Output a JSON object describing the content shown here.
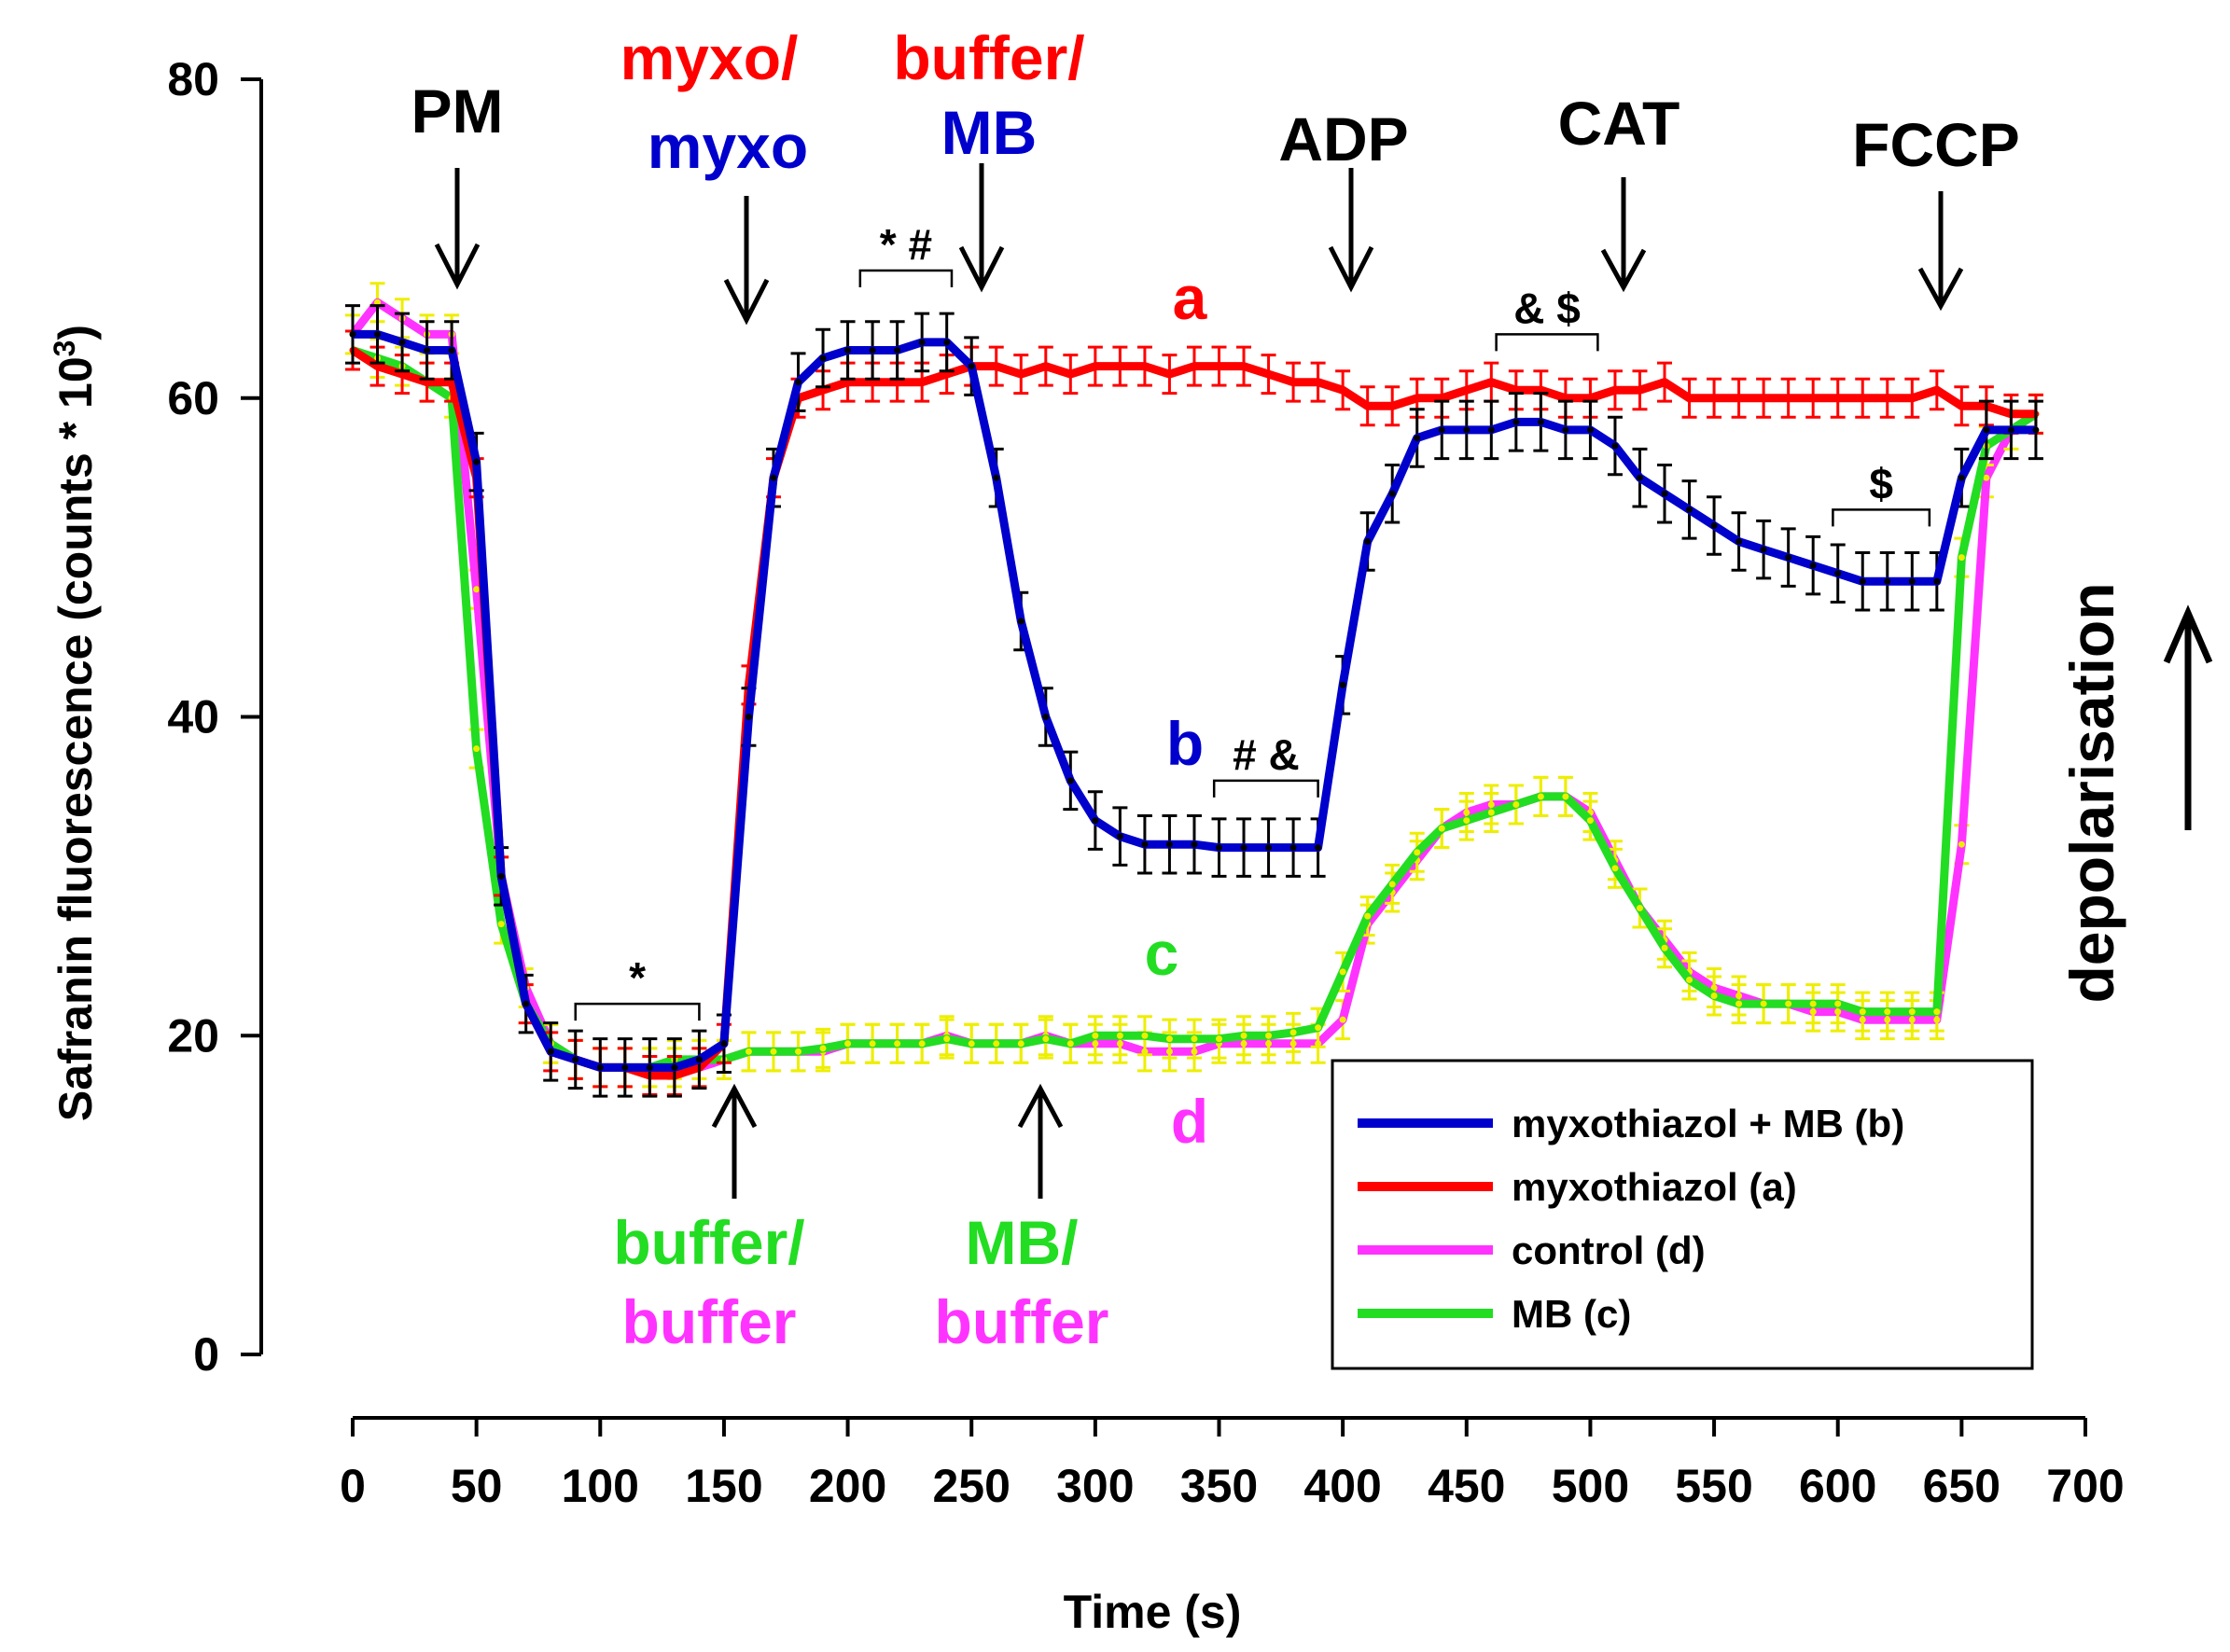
{
  "chart_data": {
    "type": "line",
    "xlabel": "Time (s)",
    "ylabel": "Safranin fluorescence (counts * 10",
    "ylabel_sup": "3",
    "ylabel_close": ")",
    "xlim": [
      0,
      700
    ],
    "ylim": [
      0,
      80
    ],
    "x_ticks": [
      0,
      50,
      100,
      150,
      200,
      250,
      300,
      350,
      400,
      450,
      500,
      550,
      600,
      650,
      700
    ],
    "y_ticks": [
      0,
      20,
      40,
      60,
      80
    ],
    "legend_position": "bottom-right",
    "series": [
      {
        "name": "control (d)",
        "color": "#ff33ff",
        "x": [
          0,
          10,
          20,
          30,
          40,
          50,
          60,
          70,
          80,
          90,
          100,
          110,
          120,
          130,
          140,
          150,
          160,
          170,
          180,
          190,
          200,
          210,
          220,
          230,
          240,
          250,
          260,
          270,
          280,
          290,
          300,
          310,
          320,
          330,
          340,
          350,
          360,
          370,
          380,
          390,
          400,
          410,
          420,
          430,
          440,
          450,
          460,
          470,
          480,
          490,
          500,
          510,
          520,
          530,
          540,
          550,
          560,
          570,
          580,
          590,
          600,
          610,
          620,
          630,
          640,
          650,
          660,
          670,
          680
        ],
        "y": [
          64,
          66,
          65,
          64,
          64,
          48,
          30,
          23,
          19.5,
          18.5,
          18,
          18,
          18,
          18,
          18,
          18.5,
          19,
          19,
          19,
          19,
          19.5,
          19.5,
          19.5,
          19.5,
          20,
          19.5,
          19.5,
          19.5,
          20,
          19.5,
          19.5,
          19.5,
          19,
          19,
          19,
          19.5,
          19.5,
          19.5,
          19.5,
          19.5,
          21,
          27,
          29,
          31,
          33,
          34,
          34.5,
          34.5,
          35,
          35,
          34,
          31,
          28,
          26,
          24,
          23,
          22.5,
          22,
          22,
          21.5,
          21.5,
          21,
          21,
          21,
          21,
          32,
          55,
          58,
          59
        ]
      },
      {
        "name": "MB (c)",
        "color": "#22dd22",
        "x": [
          0,
          10,
          20,
          30,
          40,
          50,
          60,
          70,
          80,
          90,
          100,
          110,
          120,
          130,
          140,
          150,
          160,
          170,
          180,
          190,
          200,
          210,
          220,
          230,
          240,
          250,
          260,
          270,
          280,
          290,
          300,
          310,
          320,
          330,
          340,
          350,
          360,
          370,
          380,
          390,
          400,
          410,
          420,
          430,
          440,
          450,
          460,
          470,
          480,
          490,
          500,
          510,
          520,
          530,
          540,
          550,
          560,
          570,
          580,
          590,
          600,
          610,
          620,
          630,
          640,
          650,
          660,
          670,
          680
        ],
        "y": [
          63,
          62.5,
          62,
          61,
          60,
          38,
          27,
          22,
          19.5,
          18.5,
          18,
          18,
          18,
          18.5,
          18.5,
          18.5,
          19,
          19,
          19,
          19.2,
          19.5,
          19.5,
          19.5,
          19.5,
          19.8,
          19.5,
          19.5,
          19.5,
          19.8,
          19.5,
          20,
          20,
          20,
          19.8,
          19.8,
          19.8,
          20,
          20,
          20.2,
          20.5,
          24,
          27.5,
          29.5,
          31.5,
          33,
          33.5,
          34,
          34.5,
          35,
          35,
          33.5,
          30.5,
          28,
          25.5,
          23.5,
          22.5,
          22,
          22,
          22,
          22,
          22,
          21.5,
          21.5,
          21.5,
          21.5,
          50,
          57,
          58,
          59
        ]
      },
      {
        "name": "myxothiazol (a)",
        "color": "#ff0000",
        "x": [
          0,
          10,
          20,
          30,
          40,
          50,
          60,
          70,
          80,
          90,
          100,
          110,
          120,
          130,
          140,
          150,
          160,
          170,
          180,
          190,
          200,
          210,
          220,
          230,
          240,
          250,
          260,
          270,
          280,
          290,
          300,
          310,
          320,
          330,
          340,
          350,
          360,
          370,
          380,
          390,
          400,
          410,
          420,
          430,
          440,
          450,
          460,
          470,
          480,
          490,
          500,
          510,
          520,
          530,
          540,
          550,
          560,
          570,
          580,
          590,
          600,
          610,
          620,
          630,
          640,
          650,
          660,
          670,
          680
        ],
        "y": [
          63,
          62,
          61.5,
          61,
          61,
          55,
          30,
          22,
          19,
          18.5,
          18,
          18,
          17.5,
          17.5,
          18,
          19.5,
          42,
          55,
          60,
          60.5,
          61,
          61,
          61,
          61,
          61.5,
          62,
          62,
          61.5,
          62,
          61.5,
          62,
          62,
          62,
          61.5,
          62,
          62,
          62,
          61.5,
          61,
          61,
          60.5,
          59.5,
          59.5,
          60,
          60,
          60.5,
          61,
          60.5,
          60.5,
          60,
          60,
          60.5,
          60.5,
          61,
          60,
          60,
          60,
          60,
          60,
          60,
          60,
          60,
          60,
          60,
          60.5,
          59.5,
          59.5,
          59,
          59
        ]
      },
      {
        "name": "myxothiazol + MB (b)",
        "color": "#0000cc",
        "x": [
          0,
          10,
          20,
          30,
          40,
          50,
          60,
          70,
          80,
          90,
          100,
          110,
          120,
          130,
          140,
          150,
          160,
          170,
          180,
          190,
          200,
          210,
          220,
          230,
          240,
          250,
          260,
          270,
          280,
          290,
          300,
          310,
          320,
          330,
          340,
          350,
          360,
          370,
          380,
          390,
          400,
          410,
          420,
          430,
          440,
          450,
          460,
          470,
          480,
          490,
          500,
          510,
          520,
          530,
          540,
          550,
          560,
          570,
          580,
          590,
          600,
          610,
          620,
          630,
          640,
          650,
          660,
          670,
          680
        ],
        "y": [
          64,
          64,
          63.5,
          63,
          63,
          56,
          30,
          22,
          19,
          18.5,
          18,
          18,
          18,
          18,
          18.5,
          19.5,
          40,
          55,
          61,
          62.5,
          63,
          63,
          63,
          63.5,
          63.5,
          62,
          55,
          46,
          40,
          36,
          33.5,
          32.5,
          32,
          32,
          32,
          31.8,
          31.8,
          31.8,
          31.8,
          31.8,
          42,
          51,
          54,
          57.5,
          58,
          58,
          58,
          58.5,
          58.5,
          58,
          58,
          57,
          55,
          54,
          53,
          52,
          51,
          50.5,
          50,
          49.5,
          49,
          48.5,
          48.5,
          48.5,
          48.5,
          55,
          58,
          58,
          58
        ]
      }
    ],
    "annotations": {
      "pm": "PM",
      "myxo_top": "myxo/",
      "myxo_bottom": "myxo",
      "buffer_top": "buffer/",
      "mb_top": "MB",
      "adp": "ADP",
      "cat": "CAT",
      "fccp": "FCCP",
      "buffer_c": "buffer/",
      "buffer_d": "buffer",
      "mb_c": "MB/",
      "mb_d": "buffer",
      "label_a": "a",
      "label_b": "b",
      "label_c": "c",
      "label_d": "d",
      "depolarisation": "depolarisation"
    },
    "significance": [
      {
        "text": "*",
        "x1": 90,
        "x2": 140,
        "y": 22
      },
      {
        "text": "* #",
        "x1": 205,
        "x2": 242,
        "y": 68
      },
      {
        "text": "& $",
        "x1": 462,
        "x2": 503,
        "y": 64
      },
      {
        "text": "# &",
        "x1": 348,
        "x2": 390,
        "y": 36
      },
      {
        "text": "$",
        "x1": 598,
        "x2": 637,
        "y": 53
      }
    ],
    "legend": [
      {
        "name": "myxothiazol + MB (b)",
        "color": "#0000cc"
      },
      {
        "name": "myxothiazol (a)",
        "color": "#ff0000"
      },
      {
        "name": "control (d)",
        "color": "#ff33ff"
      },
      {
        "name": "MB (c)",
        "color": "#22dd22"
      }
    ]
  }
}
